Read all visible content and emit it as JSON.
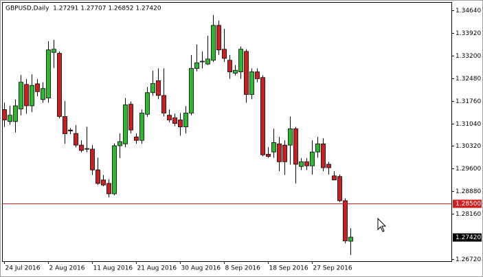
{
  "chart_data": {
    "type": "candlestick",
    "title": "GBPUSD,Daily  1.27291 1.27707 1.26852 1.27420",
    "categories": [
      "24 Jul 2016",
      null,
      null,
      null,
      null,
      null,
      null,
      null,
      "2 Aug 2016",
      null,
      null,
      null,
      null,
      null,
      null,
      null,
      "11 Aug 2016",
      null,
      null,
      null,
      null,
      null,
      null,
      null,
      "21 Aug 2016",
      null,
      null,
      null,
      null,
      null,
      null,
      null,
      "30 Aug 2016",
      null,
      null,
      null,
      null,
      null,
      null,
      null,
      "8 Sep 2016",
      null,
      null,
      null,
      null,
      null,
      null,
      null,
      "18 Sep 2016",
      null,
      null,
      null,
      null,
      null,
      null,
      null,
      "27 Sep 2016",
      null,
      null,
      null,
      null,
      null,
      null,
      null
    ],
    "open": [
      1.3148,
      1.311,
      1.311,
      1.315,
      1.3228,
      1.316,
      1.323,
      1.318,
      1.3185,
      1.333,
      1.3327,
      1.3126,
      1.3083,
      1.3072,
      1.3035,
      1.3022,
      1.3022,
      1.2956,
      1.2924,
      1.2913,
      1.288,
      1.3033,
      1.3039,
      1.3165,
      1.3061,
      1.305,
      1.3133,
      1.3202,
      1.324,
      1.3193,
      1.313,
      1.3122,
      1.3115,
      1.3093,
      1.3137,
      1.3279,
      1.33,
      1.3293,
      1.3305,
      1.3416,
      1.334,
      1.3305,
      1.3264,
      1.3268,
      1.3333,
      1.3196,
      1.3268,
      1.325,
      1.3006,
      1.3013,
      1.3039,
      1.3035,
      1.3035,
      1.3087,
      1.2967,
      1.2982,
      1.2969,
      1.3013,
      1.3039,
      1.2974,
      1.2937,
      1.2935,
      1.2858,
      1.27291
    ],
    "high": [
      1.317,
      1.316,
      1.318,
      1.3258,
      1.3245,
      1.326,
      1.3245,
      1.3235,
      1.3366,
      1.337,
      1.3333,
      1.3175,
      1.309,
      1.3098,
      1.305,
      1.3093,
      1.3035,
      1.2995,
      1.294,
      1.2926,
      1.304,
      1.3072,
      1.3185,
      1.3174,
      1.3072,
      1.3148,
      1.322,
      1.3272,
      1.3279,
      1.3279,
      1.3148,
      1.3135,
      1.3137,
      1.3159,
      1.3322,
      1.3355,
      1.3333,
      1.3383,
      1.3449,
      1.3431,
      1.3405,
      1.3322,
      1.329,
      1.3349,
      1.334,
      1.3279,
      1.3279,
      1.3257,
      1.3028,
      1.3087,
      1.3061,
      1.305,
      1.3126,
      1.3093,
      1.2993,
      1.2993,
      1.305,
      1.3061,
      1.3057,
      1.2982,
      1.2952,
      1.2941,
      1.2865,
      1.27707
    ],
    "low": [
      1.3093,
      1.31,
      1.3075,
      1.313,
      1.3135,
      1.314,
      1.319,
      1.317,
      1.317,
      1.328,
      1.312,
      1.3039,
      1.307,
      1.3028,
      1.3012,
      1.3012,
      1.294,
      1.2908,
      1.2904,
      1.2869,
      1.2875,
      1.2994,
      1.3028,
      1.3072,
      1.3039,
      1.3039,
      1.3125,
      1.3192,
      1.3181,
      1.3126,
      1.3108,
      1.3095,
      1.3065,
      1.3072,
      1.313,
      1.327,
      1.3279,
      1.329,
      1.33,
      1.3322,
      1.33,
      1.3246,
      1.3257,
      1.3246,
      1.317,
      1.3181,
      1.3235,
      1.2999,
      1.2995,
      1.2995,
      1.2952,
      1.294,
      1.2973,
      1.2913,
      1.2956,
      1.2956,
      1.2941,
      1.2995,
      1.2952,
      1.2941,
      1.2924,
      1.2854,
      1.2723,
      1.26852
    ],
    "close": [
      1.3115,
      1.313,
      1.316,
      1.3235,
      1.316,
      1.3225,
      1.3205,
      1.3215,
      1.3338,
      1.334,
      1.3126,
      1.3071,
      1.308,
      1.3035,
      1.3018,
      1.3024,
      1.2956,
      1.2913,
      1.2908,
      1.288,
      1.3033,
      1.3046,
      1.3163,
      1.3083,
      1.305,
      1.3137,
      1.3202,
      1.3231,
      1.3193,
      1.3137,
      1.3115,
      1.3104,
      1.3093,
      1.3137,
      1.3279,
      1.3297,
      1.3302,
      1.3309,
      1.3416,
      1.3338,
      1.3311,
      1.3268,
      1.3273,
      1.334,
      1.3196,
      1.3268,
      1.3246,
      1.3004,
      1.2999,
      1.3043,
      1.2982,
      1.2982,
      1.3087,
      1.2974,
      1.2982,
      1.2969,
      1.3013,
      1.3039,
      1.2963,
      1.2963,
      1.2924,
      1.2858,
      1.273,
      1.2742
    ],
    "up_color": "#2eb82e",
    "down_color": "#cc2020",
    "ylim": [
      1.26655,
      1.34902
    ],
    "yticks": [
      {
        "value": 1.3464,
        "label": "1.34640"
      },
      {
        "value": 1.3392,
        "label": "1.33920"
      },
      {
        "value": 1.332,
        "label": "1.33200"
      },
      {
        "value": 1.3248,
        "label": "1.32480"
      },
      {
        "value": 1.3176,
        "label": "1.31760"
      },
      {
        "value": 1.3104,
        "label": "1.31040"
      },
      {
        "value": 1.3032,
        "label": "1.30320"
      },
      {
        "value": 1.296,
        "label": "1.29600"
      },
      {
        "value": 1.2888,
        "label": "1.28880"
      },
      {
        "value": 1.2816,
        "label": "1.28160"
      },
      {
        "value": 1.2672,
        "label": "1.26720"
      }
    ],
    "price_line": {
      "value": 1.285,
      "label": "1.28500",
      "color": "#cc2020"
    },
    "last_price": {
      "value": 1.2742,
      "label": "1.27420"
    }
  }
}
